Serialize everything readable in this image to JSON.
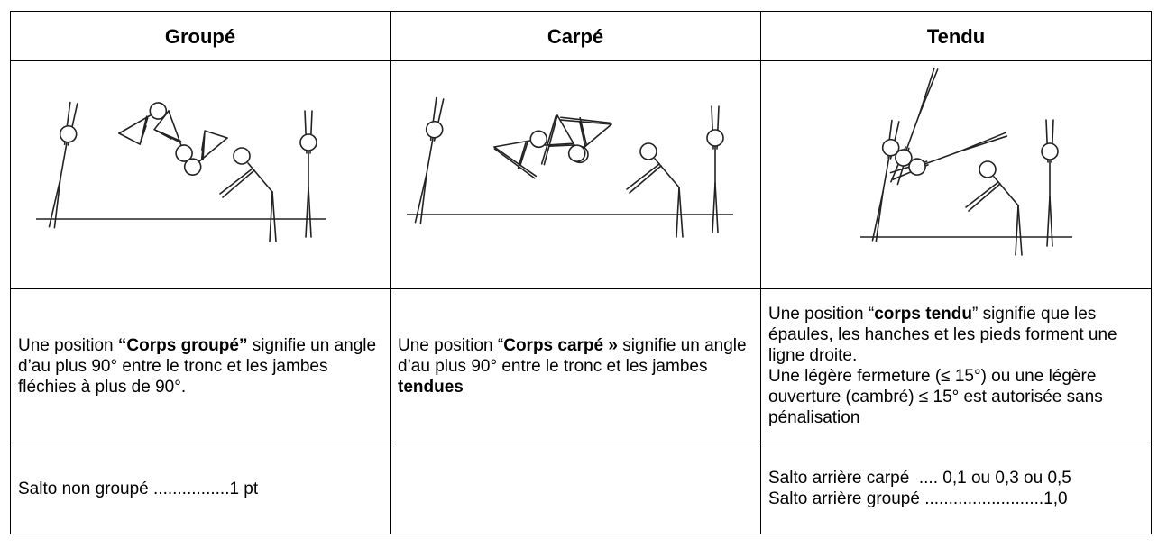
{
  "table": {
    "header": [
      "Groupé",
      "Carpé",
      "Tendu"
    ],
    "descriptions": [
      {
        "parts": [
          "Une position ",
          "“Corps groupé”",
          " signifie un angle d’au plus 90° entre le tronc et les jambes fléchies à plus de 90°."
        ]
      },
      {
        "parts": [
          "Une position “",
          "Corps carpé »",
          " signifie un angle d’au plus 90° entre le tronc et les jambes ",
          "tendues"
        ]
      },
      {
        "parts": [
          "Une position “",
          "corps tendu",
          "” signifie que les épaules, les hanches et les pieds forment une ligne droite."
        ],
        "note": "Une légère fermeture (≤ 15°) ou une légère ouverture (cambré) ≤ 15° est autorisée sans pénalisation"
      }
    ],
    "penalties": {
      "groupe": [
        "Salto non groupé ................1 pt"
      ],
      "tendu": [
        "Salto arrière carpé  .... 0,1 ou 0,3 ou 0,5",
        "Salto arrière groupé .........................1,0"
      ]
    }
  }
}
